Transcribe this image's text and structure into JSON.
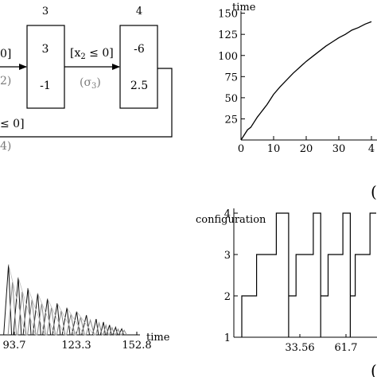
{
  "diagram": {
    "state3": {
      "number": "3",
      "cell_top": "3",
      "cell_bottom": "-1"
    },
    "state4": {
      "number": "4",
      "cell_top": "-6",
      "cell_bottom": "2.5"
    },
    "edge_left_guard": "0]",
    "edge_left_label": "2)",
    "edge_middle_guard_pre": "[x",
    "edge_middle_guard_sub": "2",
    "edge_middle_guard_post": " ≤ 0]",
    "edge_middle_label_pre": "(σ",
    "edge_middle_label_sub": "3",
    "edge_middle_label_post": ")",
    "edge_bottom_guard": "≤ 0]",
    "edge_bottom_label": "4)"
  },
  "chart_data": [
    {
      "type": "line",
      "ylabel": "time",
      "x_ticks": [
        "0",
        "10",
        "20",
        "30",
        "4"
      ],
      "y_ticks": [
        "25",
        "50",
        "75",
        "100",
        "125",
        "150"
      ],
      "panel_label": "(",
      "xlim": [
        0,
        40
      ],
      "ylim": [
        0,
        160
      ],
      "series": [
        {
          "x": [
            0,
            1,
            2,
            3,
            4,
            5,
            6,
            7,
            8,
            9,
            10,
            12,
            14,
            16,
            18,
            20,
            22,
            24,
            26,
            28,
            30,
            32,
            34,
            36,
            38,
            40
          ],
          "y": [
            0,
            6,
            12,
            15,
            21,
            27,
            32,
            37,
            42,
            48,
            54,
            63,
            71,
            79,
            86,
            93,
            99,
            105,
            111,
            116,
            121,
            125,
            130,
            133,
            137,
            140
          ]
        }
      ]
    },
    {
      "type": "line",
      "xlabel": "time",
      "x_ticks": [
        "93.7",
        "123.3",
        "152.8"
      ],
      "xlim": [
        60,
        175
      ],
      "ylim": [
        0,
        10
      ],
      "series": [
        {
          "peaks_x": [
            67,
            75,
            83,
            91,
            99,
            107,
            115,
            123,
            131,
            139,
            145,
            150,
            155,
            160
          ],
          "peaks_y": [
            9.3,
            7.6,
            6.2,
            5.5,
            4.8,
            4.2,
            3.6,
            3.1,
            2.6,
            2.1,
            1.7,
            1.3,
            1.0,
            0.8
          ]
        }
      ]
    },
    {
      "type": "line",
      "ylabel": "configuration",
      "y_ticks": [
        "1",
        "2",
        "3",
        "4"
      ],
      "x_ticks": [
        "33.56",
        "61.7"
      ],
      "panel_label": "(",
      "ylim": [
        1,
        4
      ],
      "series": [
        {
          "cycles": [
            {
              "t_drop": 0,
              "t_to3": 6,
              "t_to4": 14,
              "t_end": 19
            },
            {
              "t_drop": 19,
              "t_to3": 22,
              "t_to4": 29,
              "t_end": 32
            },
            {
              "t_drop": 32,
              "t_to3": 35,
              "t_to4": 41,
              "t_end": 44
            },
            {
              "t_drop": 44,
              "t_to3": 46,
              "t_to4": 52,
              "t_end": 55
            }
          ]
        }
      ]
    }
  ]
}
